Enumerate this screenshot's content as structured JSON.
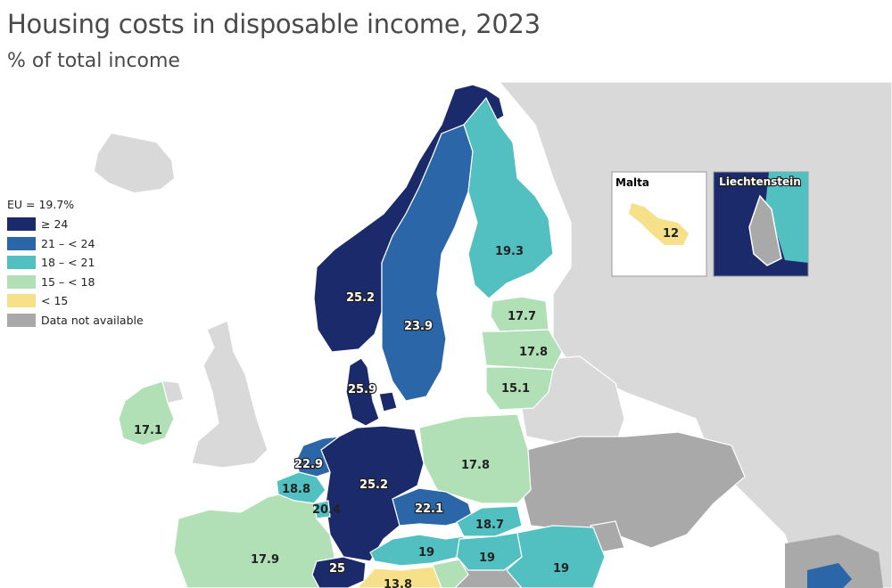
{
  "title": "Housing costs in disposable income, 2023",
  "subtitle": "% of total income",
  "legend": {
    "eu": "EU = 19.7%",
    "items": [
      {
        "label": "≥ 24",
        "color": "#1b2a6b"
      },
      {
        "label": "21 – < 24",
        "color": "#2a66a8"
      },
      {
        "label": "18 – < 21",
        "color": "#52c0c0"
      },
      {
        "label": "15 – < 18",
        "color": "#b2e0b6"
      },
      {
        "label": "< 15",
        "color": "#f6e08a"
      },
      {
        "label": "Data not available",
        "color": "#a9a9a9"
      }
    ]
  },
  "colors": {
    "non_eu": "#d9d9d9",
    "sea": "#ffffff",
    "border": "#ffffff"
  },
  "countries": {
    "norway": "25.2",
    "sweden": "23.9",
    "finland": "19.3",
    "denmark": "25.9",
    "estonia": "17.7",
    "latvia": "17.8",
    "lithuania": "15.1",
    "ireland": "17.1",
    "netherlands": "22.9",
    "belgium": "18.8",
    "luxembourg": "20.4",
    "germany": "25.2",
    "poland": "17.8",
    "czechia": "22.1",
    "slovakia": "18.7",
    "france": "17.9",
    "austria": "19",
    "hungary": "19",
    "romania": "19",
    "switzerland": "25",
    "italy": "13.8"
  },
  "insets": {
    "malta": {
      "title": "Malta",
      "value": "12"
    },
    "liechtenstein": {
      "title": "Liechtenstein"
    }
  }
}
